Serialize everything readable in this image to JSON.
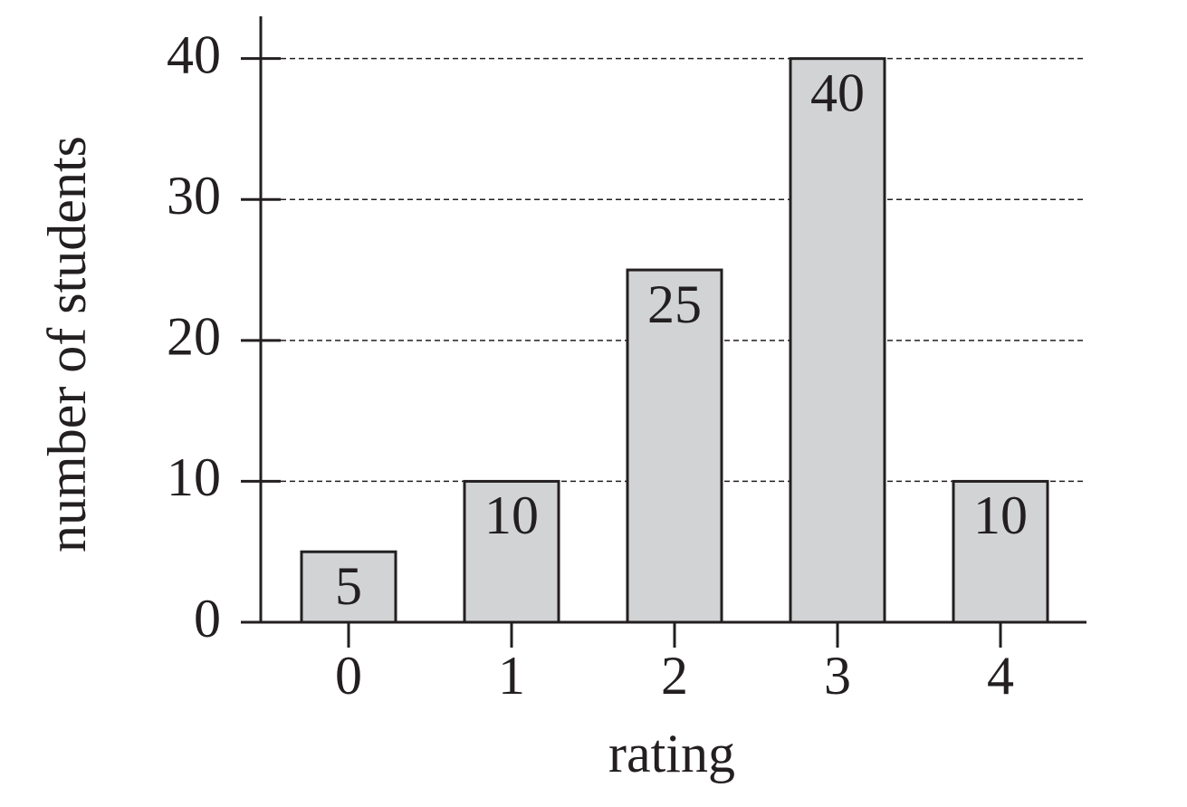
{
  "chart_data": {
    "type": "bar",
    "x_label": "rating",
    "y_label": "number of students",
    "categories": [
      "0",
      "1",
      "2",
      "3",
      "4"
    ],
    "values": [
      5,
      10,
      25,
      40,
      10
    ],
    "color": "#d1d3d4",
    "ylim": [
      0,
      43
    ],
    "yticks": [
      0,
      10,
      20,
      30,
      40
    ],
    "grid": true
  }
}
